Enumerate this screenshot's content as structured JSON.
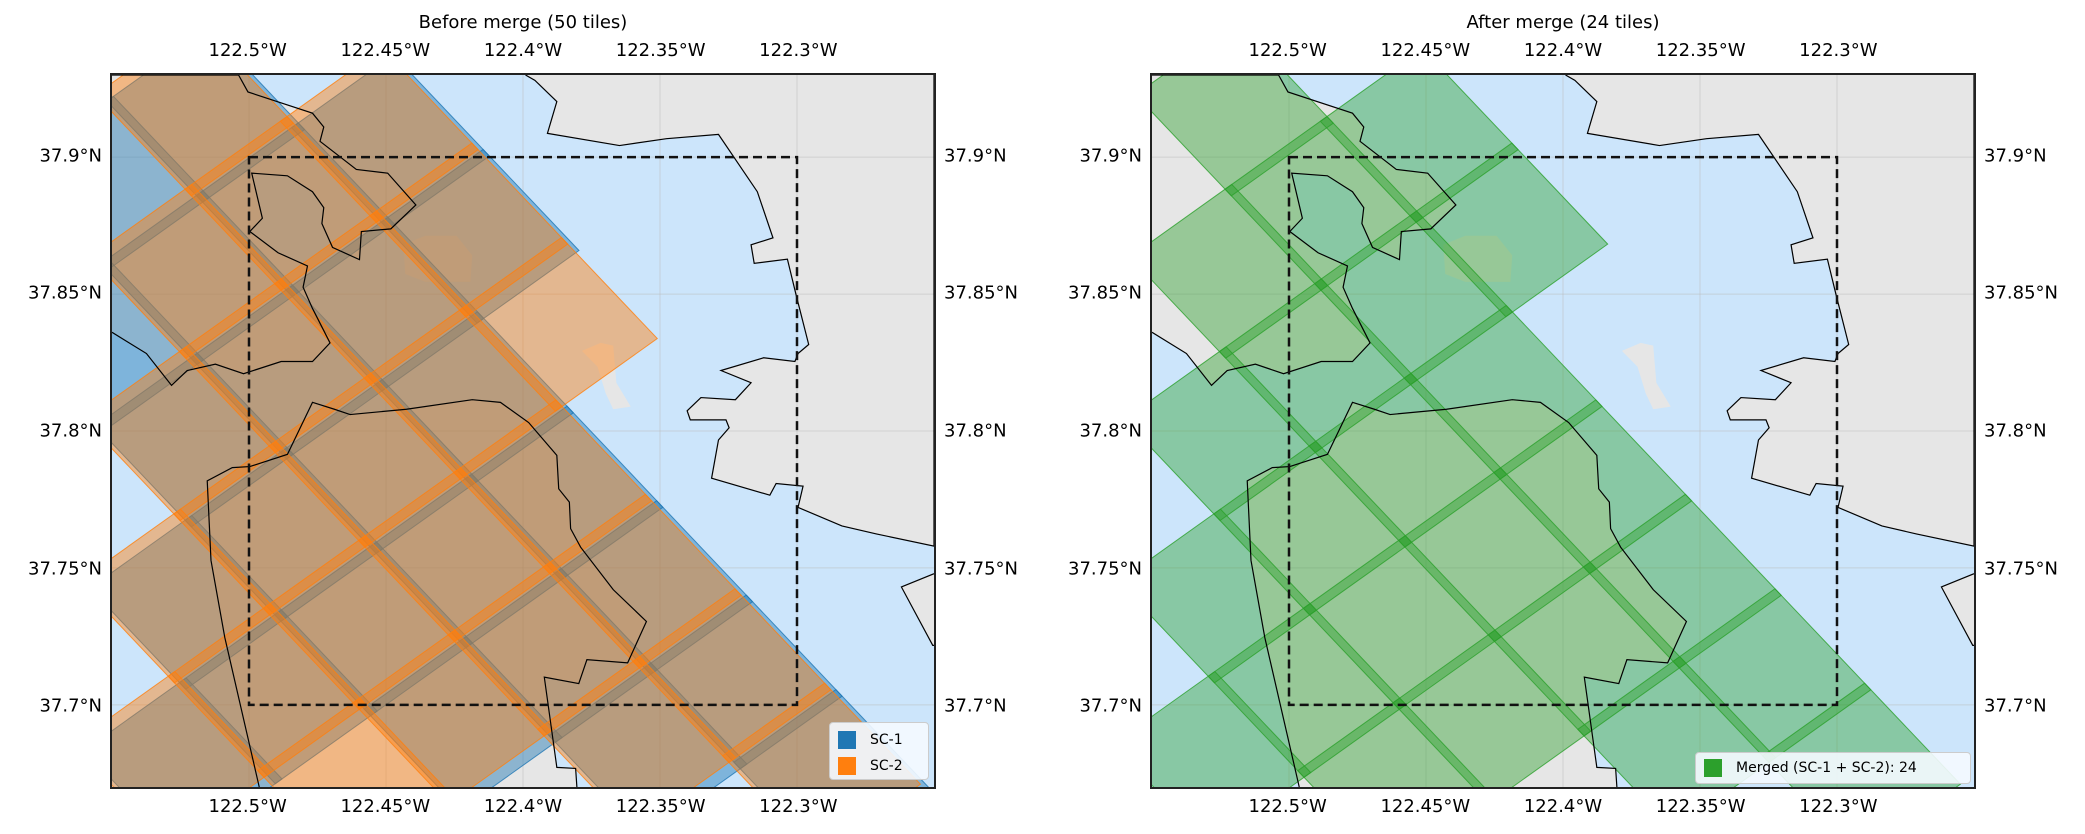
{
  "map_extent": {
    "lon": [
      -122.55,
      -122.25
    ],
    "lat": [
      37.67,
      37.93
    ]
  },
  "aoi": {
    "lon": [
      -122.5,
      -122.3
    ],
    "lat": [
      37.7,
      37.9
    ]
  },
  "x_ticks": [
    {
      "value": -122.5,
      "label": "122.5°W"
    },
    {
      "value": -122.45,
      "label": "122.45°W"
    },
    {
      "value": -122.4,
      "label": "122.4°W"
    },
    {
      "value": -122.35,
      "label": "122.35°W"
    },
    {
      "value": -122.3,
      "label": "122.3°W"
    }
  ],
  "y_ticks": [
    {
      "value": 37.9,
      "label": "37.9°N"
    },
    {
      "value": 37.85,
      "label": "37.85°N"
    },
    {
      "value": 37.8,
      "label": "37.8°N"
    },
    {
      "value": 37.75,
      "label": "37.75°N"
    },
    {
      "value": 37.7,
      "label": "37.7°N"
    }
  ],
  "colors": {
    "land": "#e6e6e6",
    "water": "#cce5fb",
    "sc1": "#1f77b4",
    "sc2": "#ff7f0e",
    "merged": "#2ca02c"
  },
  "panels": [
    {
      "title": "Before merge (50 tiles)",
      "tile_count": 50,
      "legend": [
        {
          "label": "SC-1",
          "color": "#1f77b4"
        },
        {
          "label": "SC-2",
          "color": "#ff7f0e"
        }
      ]
    },
    {
      "title": "After merge (24 tiles)",
      "tile_count": 24,
      "legend": [
        {
          "label": "Merged (SC-1 + SC-2): 24",
          "color": "#2ca02c"
        }
      ]
    }
  ]
}
